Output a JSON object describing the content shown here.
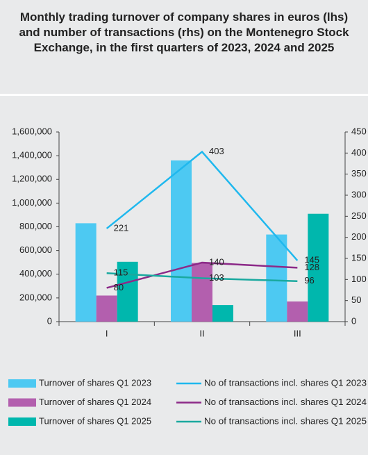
{
  "chart_data": {
    "type": "bar",
    "title": "Monthly trading turnover of company shares in euros (lhs) and number of transactions (rhs) on the Montenegro Stock Exchange, in the first quarters of 2023, 2024 and 2025",
    "categories": [
      "I",
      "II",
      "III"
    ],
    "series": [
      {
        "name": "Turnover of shares Q1 2023",
        "color": "#4dc9f2",
        "values": [
          830000,
          1360000,
          735000
        ]
      },
      {
        "name": "Turnover of shares Q1 2024",
        "color": "#b35fae",
        "values": [
          220000,
          495000,
          170000
        ]
      },
      {
        "name": "Turnover of shares Q1 2025",
        "color": "#00b7ad",
        "values": [
          505000,
          140000,
          910000
        ]
      },
      {
        "name": "No of transactions incl. shares Q1 2023",
        "color": "#1fb8ee",
        "type": "line",
        "axis": "y2",
        "values": [
          221,
          403,
          145
        ]
      },
      {
        "name": "No of transactions incl. shares Q1 2024",
        "color": "#8c2a88",
        "type": "line",
        "axis": "y2",
        "values": [
          80,
          140,
          128
        ]
      },
      {
        "name": "No of transactions incl. shares Q1 2025",
        "color": "#1aa99f",
        "type": "line",
        "axis": "y2",
        "values": [
          115,
          103,
          96
        ]
      }
    ],
    "ylim": [
      0,
      1600000
    ],
    "yticks": [
      0,
      {
        "value": 200000,
        "label": "200,000"
      },
      {
        "value": 400000,
        "label": "400,000"
      },
      {
        "value": 600000,
        "label": "600,000"
      },
      {
        "value": 800000,
        "label": "800,000"
      },
      {
        "value": 1000000,
        "label": "1,000,000"
      },
      {
        "value": 1200000,
        "label": "1,200,000"
      },
      {
        "value": 1400000,
        "label": "1,400,000"
      },
      {
        "value": 1600000,
        "label": "1,600,000"
      }
    ],
    "y2lim": [
      0,
      450
    ],
    "y2ticks": [
      0,
      50,
      100,
      150,
      200,
      250,
      300,
      350,
      400,
      450
    ],
    "legend": "bottom"
  }
}
